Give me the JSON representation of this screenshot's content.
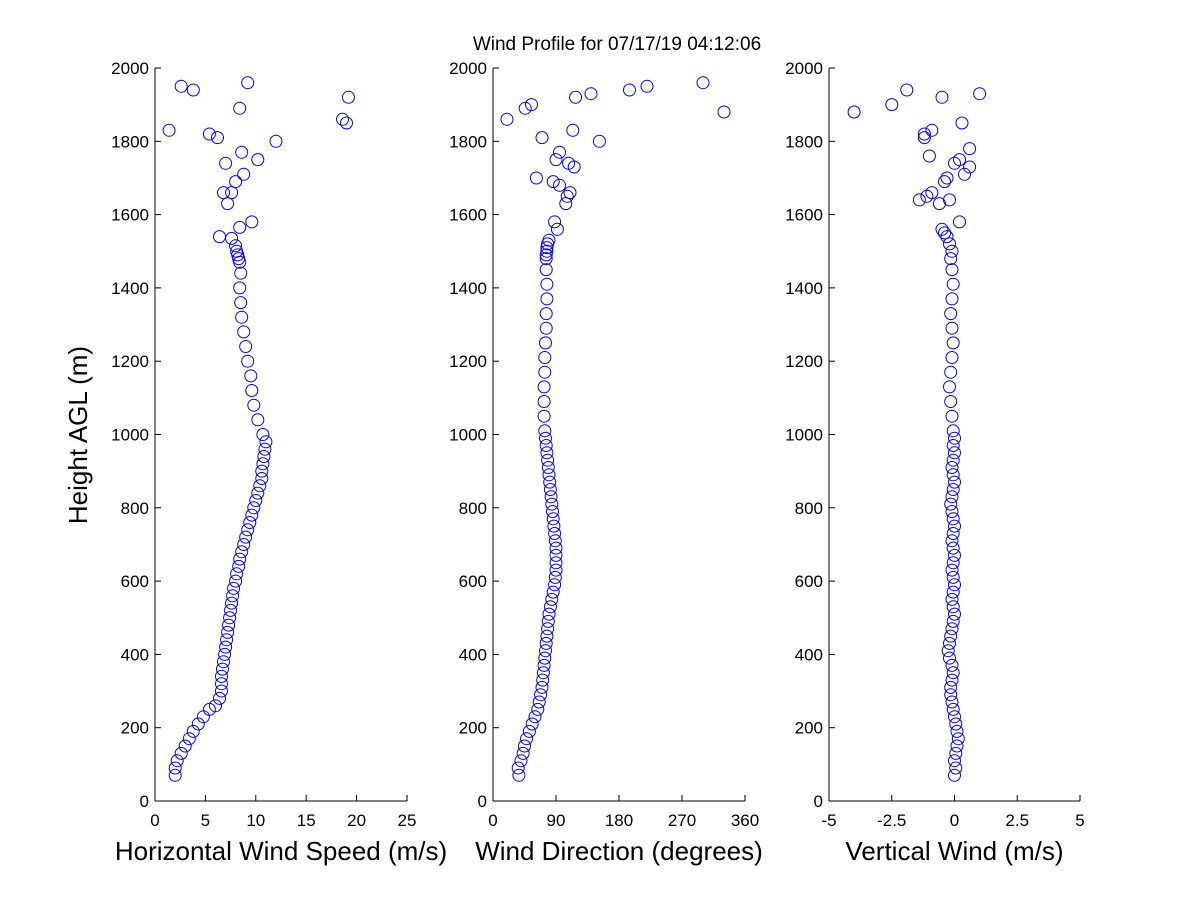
{
  "figure": {
    "title": "Wind Profile for  07/17/19 04:12:06",
    "ylabel": "Height AGL (m)",
    "background": "#ffffff",
    "marker_color": "#0000ff"
  },
  "chart_data": [
    {
      "type": "scatter",
      "xlabel": "Horizontal Wind Speed (m/s)",
      "ylabel": "Height AGL (m)",
      "xlim": [
        0,
        25
      ],
      "ylim": [
        0,
        2000
      ],
      "xticks": [
        "0",
        "5",
        "10",
        "15",
        "20",
        "25"
      ],
      "yticks": [
        "0",
        "200",
        "400",
        "600",
        "800",
        "1000",
        "1200",
        "1400",
        "1600",
        "1800",
        "2000"
      ],
      "marker": "open-circle",
      "grid": false,
      "x": [
        2.0,
        2.0,
        2.2,
        2.6,
        3.0,
        3.4,
        3.8,
        4.3,
        4.8,
        5.4,
        6.0,
        6.4,
        6.6,
        6.6,
        6.6,
        6.7,
        6.8,
        6.9,
        7.0,
        7.1,
        7.2,
        7.3,
        7.4,
        7.5,
        7.6,
        7.7,
        7.8,
        8.0,
        8.1,
        8.3,
        8.4,
        8.6,
        8.8,
        9.0,
        9.2,
        9.4,
        9.6,
        9.8,
        10.0,
        10.2,
        10.4,
        10.6,
        10.6,
        10.7,
        10.8,
        10.9,
        11.0,
        10.7,
        10.2,
        9.8,
        9.6,
        9.5,
        9.2,
        9.0,
        8.8,
        8.6,
        8.5,
        8.4,
        8.5,
        8.4,
        8.3,
        8.2,
        8.1,
        8.0,
        7.6,
        6.4,
        8.4,
        9.6,
        7.2,
        6.8,
        7.6,
        8.0,
        8.8,
        7.0,
        10.2,
        8.6,
        1.4,
        6.2,
        5.4,
        12.0,
        18.6,
        19.0,
        19.2,
        8.4,
        2.6,
        3.8,
        9.2
      ],
      "y": [
        70,
        90,
        110,
        130,
        150,
        170,
        190,
        210,
        230,
        250,
        260,
        280,
        300,
        320,
        340,
        360,
        380,
        400,
        420,
        440,
        460,
        480,
        500,
        520,
        540,
        560,
        580,
        600,
        620,
        640,
        660,
        680,
        700,
        720,
        740,
        760,
        780,
        800,
        820,
        840,
        860,
        880,
        900,
        920,
        940,
        960,
        980,
        1000,
        1040,
        1080,
        1120,
        1160,
        1200,
        1240,
        1280,
        1320,
        1360,
        1400,
        1440,
        1470,
        1480,
        1490,
        1500,
        1515,
        1535,
        1540,
        1565,
        1580,
        1630,
        1660,
        1660,
        1690,
        1710,
        1740,
        1750,
        1770,
        1830,
        1810,
        1820,
        1800,
        1860,
        1850,
        1920,
        1890,
        1950,
        1940,
        1960
      ]
    },
    {
      "type": "scatter",
      "xlabel": "Wind Direction (degrees)",
      "ylabel": "",
      "xlim": [
        0,
        360
      ],
      "ylim": [
        0,
        2000
      ],
      "xticks": [
        "0",
        "90",
        "180",
        "270",
        "360"
      ],
      "yticks": [
        "0",
        "200",
        "400",
        "600",
        "800",
        "1000",
        "1200",
        "1400",
        "1600",
        "1800",
        "2000"
      ],
      "marker": "open-circle",
      "grid": false,
      "x": [
        37,
        36,
        40,
        43,
        45,
        48,
        52,
        56,
        60,
        64,
        66,
        68,
        70,
        71,
        72,
        73,
        74,
        75,
        76,
        77,
        78,
        79,
        80,
        82,
        84,
        86,
        88,
        89,
        90,
        90,
        90,
        90,
        89,
        88,
        87,
        86,
        85,
        84,
        83,
        82,
        81,
        80,
        79,
        78,
        77,
        76,
        75,
        74,
        73,
        73,
        73,
        74,
        74,
        75,
        76,
        76,
        77,
        77,
        76,
        76,
        76,
        77,
        77,
        78,
        80,
        92,
        88,
        104,
        106,
        110,
        86,
        95,
        62,
        108,
        116,
        90,
        95,
        114,
        70,
        152,
        20,
        46,
        118,
        55,
        300,
        330,
        195,
        220,
        140
      ],
      "y": [
        70,
        90,
        110,
        130,
        150,
        170,
        190,
        210,
        230,
        250,
        270,
        290,
        310,
        330,
        350,
        370,
        390,
        410,
        430,
        450,
        470,
        490,
        510,
        530,
        550,
        570,
        590,
        610,
        630,
        650,
        670,
        690,
        710,
        730,
        750,
        770,
        790,
        810,
        830,
        850,
        870,
        890,
        910,
        930,
        950,
        970,
        990,
        1010,
        1050,
        1090,
        1130,
        1170,
        1210,
        1250,
        1290,
        1330,
        1370,
        1410,
        1450,
        1480,
        1490,
        1500,
        1510,
        1520,
        1530,
        1560,
        1580,
        1630,
        1650,
        1660,
        1690,
        1680,
        1700,
        1740,
        1730,
        1750,
        1770,
        1830,
        1810,
        1800,
        1860,
        1890,
        1920,
        1900,
        1960,
        1880,
        1940,
        1950,
        1930
      ]
    },
    {
      "type": "scatter",
      "xlabel": "Vertical Wind (m/s)",
      "ylabel": "",
      "xlim": [
        -5,
        5
      ],
      "ylim": [
        0,
        2000
      ],
      "xticks": [
        "-5",
        "-2.5",
        "0",
        "2.5",
        "5"
      ],
      "yticks": [
        "0",
        "200",
        "400",
        "600",
        "800",
        "1000",
        "1200",
        "1400",
        "1600",
        "1800",
        "2000"
      ],
      "marker": "open-circle",
      "grid": false,
      "x": [
        0.0,
        0.05,
        0.0,
        0.05,
        0.1,
        0.15,
        0.1,
        0.05,
        0.0,
        -0.05,
        -0.1,
        -0.15,
        -0.15,
        -0.1,
        -0.05,
        -0.1,
        -0.2,
        -0.25,
        -0.2,
        -0.15,
        -0.1,
        -0.05,
        0.0,
        -0.05,
        -0.1,
        -0.05,
        0.0,
        -0.05,
        -0.1,
        -0.05,
        0.0,
        -0.05,
        -0.1,
        -0.05,
        0.0,
        -0.05,
        -0.1,
        -0.15,
        -0.1,
        -0.05,
        0.0,
        -0.05,
        -0.1,
        -0.05,
        0.0,
        -0.05,
        0.0,
        -0.05,
        -0.1,
        -0.15,
        -0.2,
        -0.15,
        -0.1,
        -0.05,
        -0.1,
        -0.15,
        -0.1,
        -0.05,
        -0.1,
        -0.15,
        -0.1,
        -0.2,
        -0.3,
        -0.5,
        -0.4,
        0.2,
        -0.6,
        -0.2,
        -1.4,
        -0.9,
        -1.1,
        -0.3,
        -0.4,
        0.0,
        0.4,
        0.6,
        -1.0,
        -1.2,
        -0.9,
        0.3,
        -4.0,
        -2.5,
        -1.9,
        -0.5,
        1.0,
        0.6,
        -1.2,
        0.2
      ],
      "y": [
        70,
        90,
        110,
        130,
        150,
        170,
        190,
        210,
        230,
        250,
        270,
        290,
        310,
        330,
        350,
        370,
        390,
        410,
        430,
        450,
        470,
        490,
        510,
        530,
        550,
        570,
        590,
        610,
        630,
        650,
        670,
        690,
        710,
        730,
        750,
        770,
        790,
        810,
        830,
        850,
        870,
        890,
        910,
        930,
        950,
        970,
        990,
        1010,
        1050,
        1090,
        1130,
        1170,
        1210,
        1250,
        1290,
        1330,
        1370,
        1410,
        1450,
        1480,
        1500,
        1520,
        1540,
        1560,
        1550,
        1580,
        1630,
        1640,
        1640,
        1660,
        1650,
        1700,
        1690,
        1740,
        1710,
        1730,
        1760,
        1810,
        1830,
        1850,
        1880,
        1900,
        1940,
        1920,
        1930,
        1780,
        1820,
        1750
      ]
    }
  ]
}
